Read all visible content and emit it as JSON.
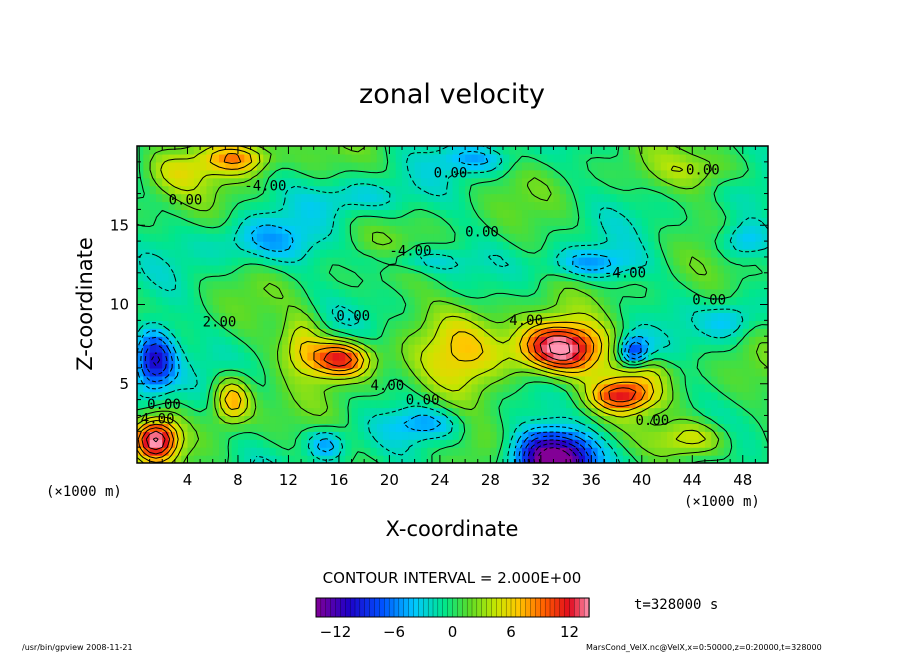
{
  "chart_data": {
    "type": "heatmap",
    "title": "zonal velocity",
    "xlabel": "X-coordinate",
    "ylabel": "Z-coordinate",
    "x_units_label": "(×1000 m)",
    "y_units_label": "(×1000 m)",
    "xlim": [
      0,
      50
    ],
    "ylim": [
      0,
      20
    ],
    "x_ticks": [
      4,
      8,
      12,
      16,
      20,
      24,
      28,
      32,
      36,
      40,
      44,
      48
    ],
    "y_ticks": [
      5,
      10,
      15
    ],
    "contour_interval_text": "CONTOUR INTERVAL = 2.000E+00",
    "time_text": "t=328000 s",
    "colorbar": {
      "min": -14,
      "max": 14,
      "ticks": [
        -12,
        -6,
        0,
        6,
        12
      ],
      "tick_labels": [
        "−12",
        "−6",
        "0",
        "6",
        "12"
      ]
    },
    "contour_labels": [
      {
        "text": "0.00",
        "x": 2.5,
        "y": 16.3
      },
      {
        "text": "-4.00",
        "x": 8.5,
        "y": 17.2
      },
      {
        "text": "0.00",
        "x": 23.5,
        "y": 18.0
      },
      {
        "text": "0.00",
        "x": 43.5,
        "y": 18.2
      },
      {
        "text": "0.00",
        "x": 26.0,
        "y": 14.3
      },
      {
        "text": "-4.00",
        "x": 20.0,
        "y": 13.1
      },
      {
        "text": "-4.00",
        "x": 37.0,
        "y": 11.7
      },
      {
        "text": "0.00",
        "x": 44.0,
        "y": 10.0
      },
      {
        "text": "2.00",
        "x": 5.2,
        "y": 8.6
      },
      {
        "text": "0.00",
        "x": 15.8,
        "y": 9.0
      },
      {
        "text": "4.00",
        "x": 29.5,
        "y": 8.7
      },
      {
        "text": "4.00",
        "x": 18.5,
        "y": 4.6
      },
      {
        "text": "0.00",
        "x": 21.3,
        "y": 3.7
      },
      {
        "text": "0.00",
        "x": 0.8,
        "y": 3.4
      },
      {
        "text": "4.00",
        "x": 0.3,
        "y": 2.5
      },
      {
        "text": "0.00",
        "x": 39.5,
        "y": 2.4
      }
    ],
    "features": [
      {
        "x": 33.5,
        "y": 7.2,
        "amp": 15,
        "sx": 3.4,
        "sy": 1.6
      },
      {
        "x": 38.5,
        "y": 4.3,
        "amp": 10,
        "sx": 2.6,
        "sy": 1.0
      },
      {
        "x": 16.0,
        "y": 6.6,
        "amp": 12,
        "sx": 2.6,
        "sy": 1.2
      },
      {
        "x": 13.0,
        "y": 7.8,
        "amp": 5,
        "sx": 1.6,
        "sy": 1.6
      },
      {
        "x": 33.0,
        "y": 0.3,
        "amp": -16,
        "sx": 3.2,
        "sy": 1.7
      },
      {
        "x": 1.5,
        "y": 1.5,
        "amp": 13,
        "sx": 1.7,
        "sy": 1.3
      },
      {
        "x": 1.3,
        "y": 6.5,
        "amp": -11,
        "sx": 1.7,
        "sy": 2.0
      },
      {
        "x": 39.3,
        "y": 7.0,
        "amp": -9,
        "sx": 1.2,
        "sy": 1.0
      },
      {
        "x": 7.5,
        "y": 4.0,
        "amp": 8,
        "sx": 1.5,
        "sy": 1.5
      },
      {
        "x": 8.0,
        "y": 19.3,
        "amp": 8,
        "sx": 2.6,
        "sy": 1.0
      },
      {
        "x": 26.0,
        "y": 7.0,
        "amp": 5,
        "sx": 3.5,
        "sy": 3.5
      },
      {
        "x": 17.5,
        "y": 16.8,
        "amp": -3,
        "sx": 4.0,
        "sy": 1.2
      },
      {
        "x": 27.0,
        "y": 19.2,
        "amp": -4,
        "sx": 3.0,
        "sy": 0.9
      },
      {
        "x": 36.0,
        "y": 12.6,
        "amp": -5,
        "sx": 3.5,
        "sy": 1.0
      },
      {
        "x": 22.0,
        "y": 12.8,
        "amp": -3,
        "sx": 4.0,
        "sy": 0.8
      },
      {
        "x": 44.0,
        "y": 1.5,
        "amp": 6,
        "sx": 3.0,
        "sy": 1.2
      },
      {
        "x": 15.0,
        "y": 1.2,
        "amp": -5,
        "sx": 1.5,
        "sy": 1.0
      },
      {
        "x": 23.0,
        "y": 2.5,
        "amp": -4,
        "sx": 3.0,
        "sy": 1.0
      },
      {
        "x": 48.0,
        "y": 14.0,
        "amp": -5,
        "sx": 2.0,
        "sy": 1.2
      },
      {
        "x": 47.0,
        "y": 9.0,
        "amp": -4,
        "sx": 2.0,
        "sy": 1.2
      },
      {
        "x": 3.0,
        "y": 18.5,
        "amp": 4,
        "sx": 3.0,
        "sy": 1.5
      },
      {
        "x": 10.0,
        "y": 14.0,
        "amp": -4,
        "sx": 4.0,
        "sy": 1.5
      },
      {
        "x": 45.0,
        "y": 18.5,
        "amp": 3,
        "sx": 4.0,
        "sy": 1.2
      },
      {
        "x": 40.0,
        "y": 5.8,
        "amp": 4,
        "sx": 3.0,
        "sy": 1.0
      }
    ]
  },
  "footer": {
    "left": "/usr/bin/gpview  2008-11-21",
    "right": "MarsCond_VelX.nc@VelX,x=0:50000,z=0:20000,t=328000"
  }
}
